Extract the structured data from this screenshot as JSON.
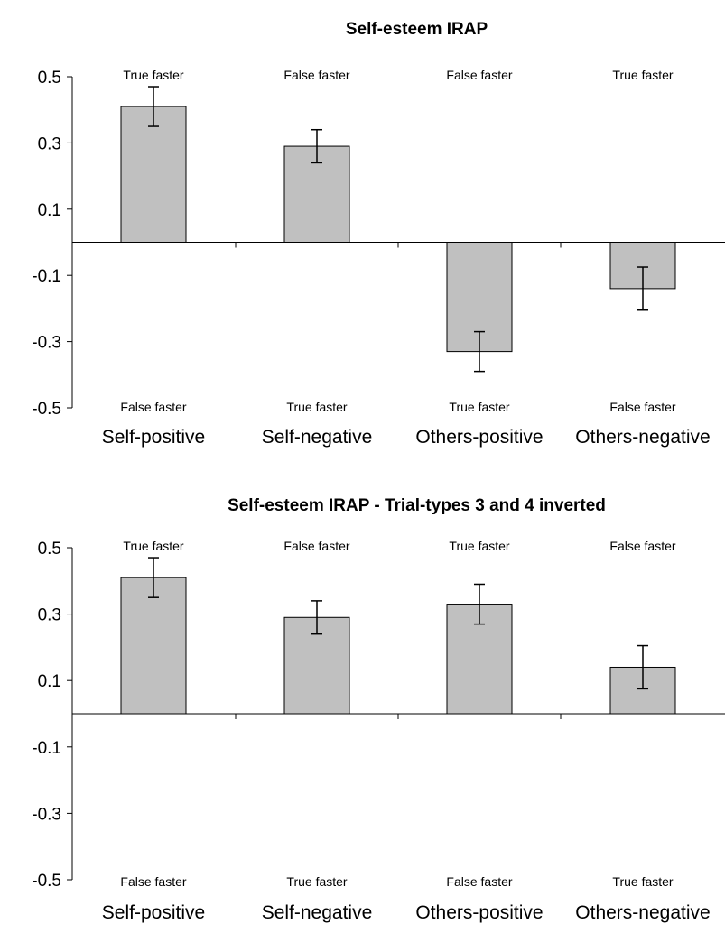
{
  "chart_data": [
    {
      "type": "bar",
      "title": "Self-esteem IRAP",
      "categories": [
        "Self-positive",
        "Self-negative",
        "Others-positive",
        "Others-negative"
      ],
      "values": [
        0.41,
        0.29,
        -0.33,
        -0.14
      ],
      "error": [
        0.06,
        0.05,
        0.06,
        0.065
      ],
      "top_labels": [
        "True faster",
        "False faster",
        "False faster",
        "True faster"
      ],
      "bottom_labels": [
        "False faster",
        "True faster",
        "True faster",
        "False faster"
      ],
      "yticks": [
        "0.5",
        "0.3",
        "0.1",
        "-0.1",
        "-0.3",
        "-0.5"
      ],
      "ylim": [
        -0.5,
        0.5
      ],
      "xlabel": "",
      "ylabel": "",
      "bar_color": "#c0c0c0",
      "grid": false
    },
    {
      "type": "bar",
      "title": "Self-esteem IRAP - Trial-types 3 and 4 inverted",
      "categories": [
        "Self-positive",
        "Self-negative",
        "Others-positive",
        "Others-negative"
      ],
      "values": [
        0.41,
        0.29,
        0.33,
        0.14
      ],
      "error": [
        0.06,
        0.05,
        0.06,
        0.065
      ],
      "top_labels": [
        "True faster",
        "False faster",
        "True faster",
        "False faster"
      ],
      "bottom_labels": [
        "False faster",
        "True faster",
        "False faster",
        "True faster"
      ],
      "yticks": [
        "0.5",
        "0.3",
        "0.1",
        "-0.1",
        "-0.3",
        "-0.5"
      ],
      "ylim": [
        -0.5,
        0.5
      ],
      "xlabel": "",
      "ylabel": "",
      "bar_color": "#c0c0c0",
      "grid": false
    }
  ]
}
